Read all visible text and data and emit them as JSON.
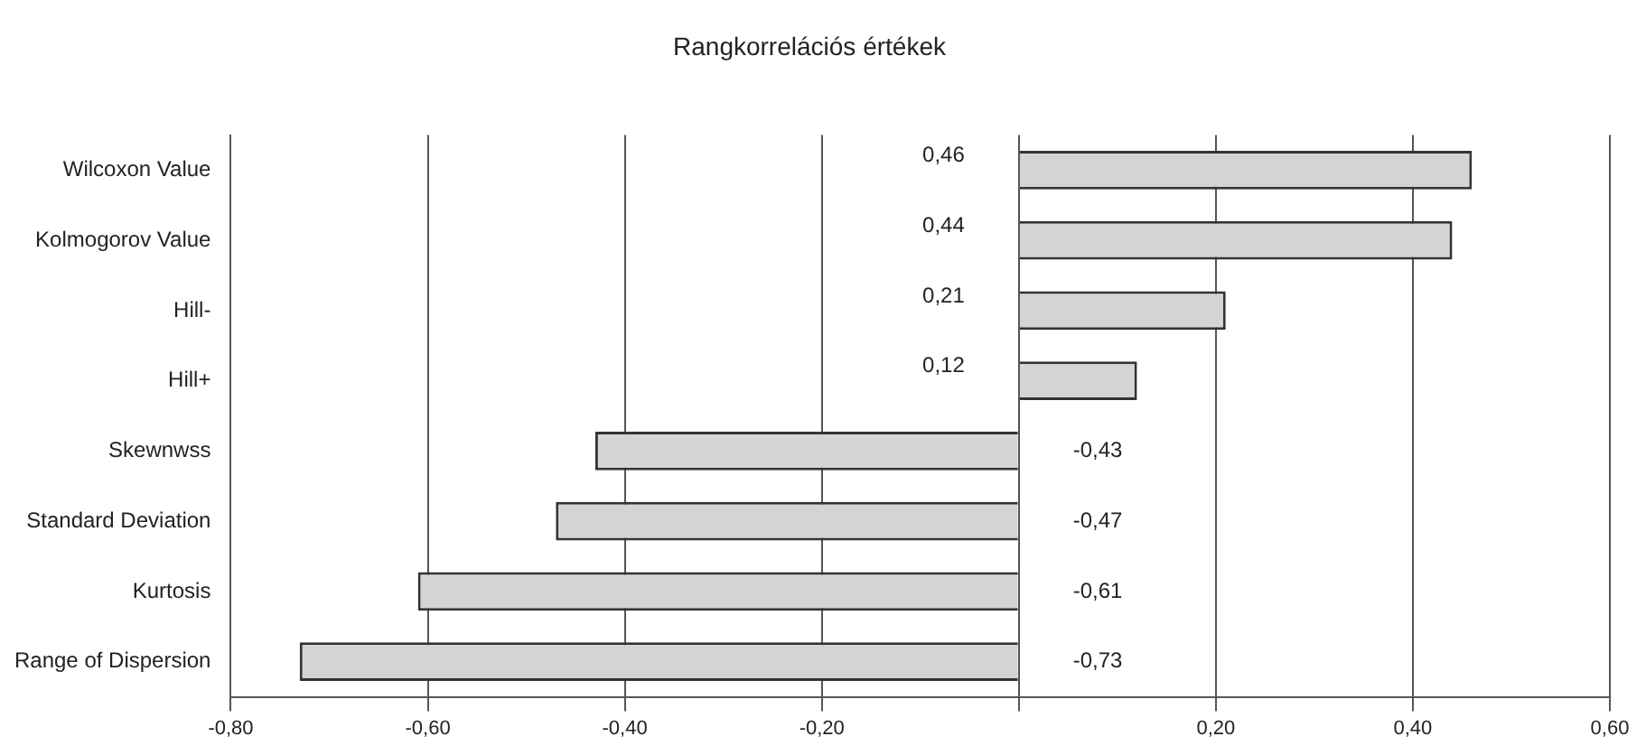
{
  "chart_data": {
    "type": "bar",
    "orientation": "horizontal",
    "title": "Rangkorrelációs értékek",
    "categories": [
      "Wilcoxon Value",
      "Kolmogorov Value",
      "Hill-",
      "Hill+",
      "Skewnwss",
      "Standard Deviation",
      "Kurtosis",
      "Range of Dispersion"
    ],
    "values": [
      0.46,
      0.44,
      0.21,
      0.12,
      -0.43,
      -0.47,
      -0.61,
      -0.73
    ],
    "value_labels": [
      "0,46",
      "0,44",
      "0,21",
      "0,12",
      "-0,43",
      "-0,47",
      "-0,61",
      "-0,73"
    ],
    "color": "#d4d4d4",
    "xlim": [
      -0.8,
      0.6
    ],
    "xticks": [
      {
        "value": -0.8,
        "label": "-0,80"
      },
      {
        "value": -0.6,
        "label": "-0,60"
      },
      {
        "value": -0.4,
        "label": "-0,40"
      },
      {
        "value": -0.2,
        "label": "-0,20"
      },
      {
        "value": 0,
        "label": null
      },
      {
        "value": 0.2,
        "label": "0,20"
      },
      {
        "value": 0.4,
        "label": "0,40"
      },
      {
        "value": 0.6,
        "label": "0,60"
      }
    ],
    "grid": "x",
    "legend": false
  }
}
